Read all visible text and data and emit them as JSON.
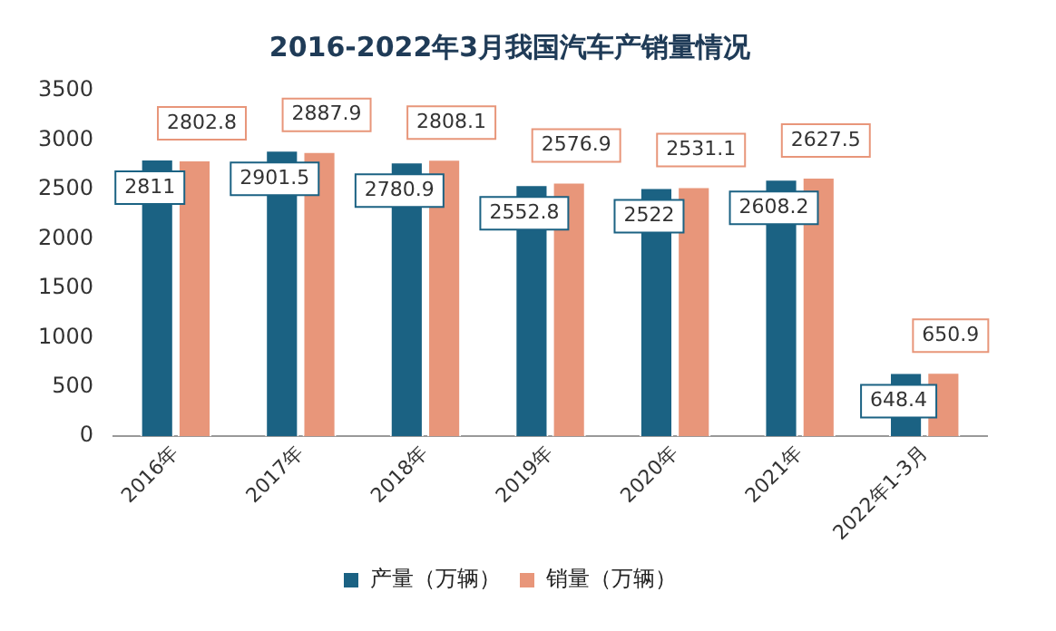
{
  "chart_data": {
    "type": "bar",
    "title": "2016-2022年3月我国汽车产销量情况",
    "categories": [
      "2016年",
      "2017年",
      "2018年",
      "2019年",
      "2020年",
      "2021年",
      "2022年1-3月"
    ],
    "series": [
      {
        "name": "产量（万辆）",
        "color": "#1b6283",
        "values": [
          2811,
          2901.5,
          2780.9,
          2552.8,
          2522,
          2608.2,
          648.4
        ]
      },
      {
        "name": "销量（万辆）",
        "color": "#e8967a",
        "values": [
          2802.8,
          2887.9,
          2808.1,
          2576.9,
          2531.1,
          2627.5,
          650.9
        ]
      }
    ],
    "ylim": [
      0,
      3500
    ],
    "yticks": [
      0,
      500,
      1000,
      1500,
      2000,
      2500,
      3000,
      3500
    ],
    "grid": false,
    "legend": "bottom",
    "data_labels": true
  }
}
